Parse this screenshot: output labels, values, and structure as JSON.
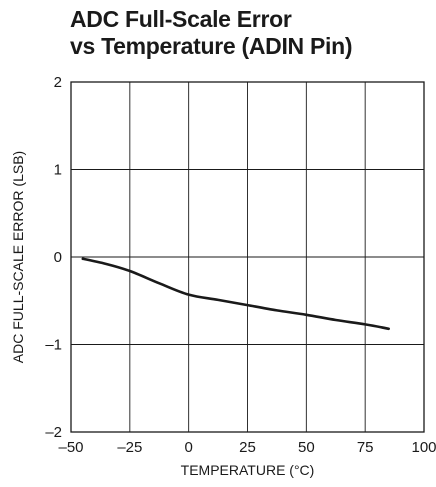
{
  "chart_data": {
    "type": "line",
    "title_lines": [
      "ADC Full-Scale Error",
      "vs Temperature (ADIN Pin)"
    ],
    "xlabel": "TEMPERATURE (°C)",
    "ylabel": "ADC FULL-SCALE ERROR (LSB)",
    "xlim": [
      -50,
      100
    ],
    "ylim": [
      -2,
      2
    ],
    "x_ticks": [
      -50,
      -25,
      0,
      25,
      50,
      75,
      100
    ],
    "x_tick_labels": [
      "–50",
      "–25",
      "0",
      "25",
      "50",
      "75",
      "100"
    ],
    "y_ticks": [
      -2,
      -1,
      0,
      1,
      2
    ],
    "y_tick_labels": [
      "–2",
      "–1",
      "0",
      "1",
      "2"
    ],
    "grid": true,
    "series": [
      {
        "x": [
          -45,
          -35,
          -25,
          -12.5,
          0,
          12.5,
          25,
          37.5,
          50,
          62.5,
          75,
          85
        ],
        "y": [
          -0.02,
          -0.08,
          -0.16,
          -0.3,
          -0.43,
          -0.49,
          -0.55,
          -0.61,
          -0.66,
          -0.72,
          -0.77,
          -0.82
        ]
      }
    ],
    "line_color": "#1a1a1a"
  }
}
